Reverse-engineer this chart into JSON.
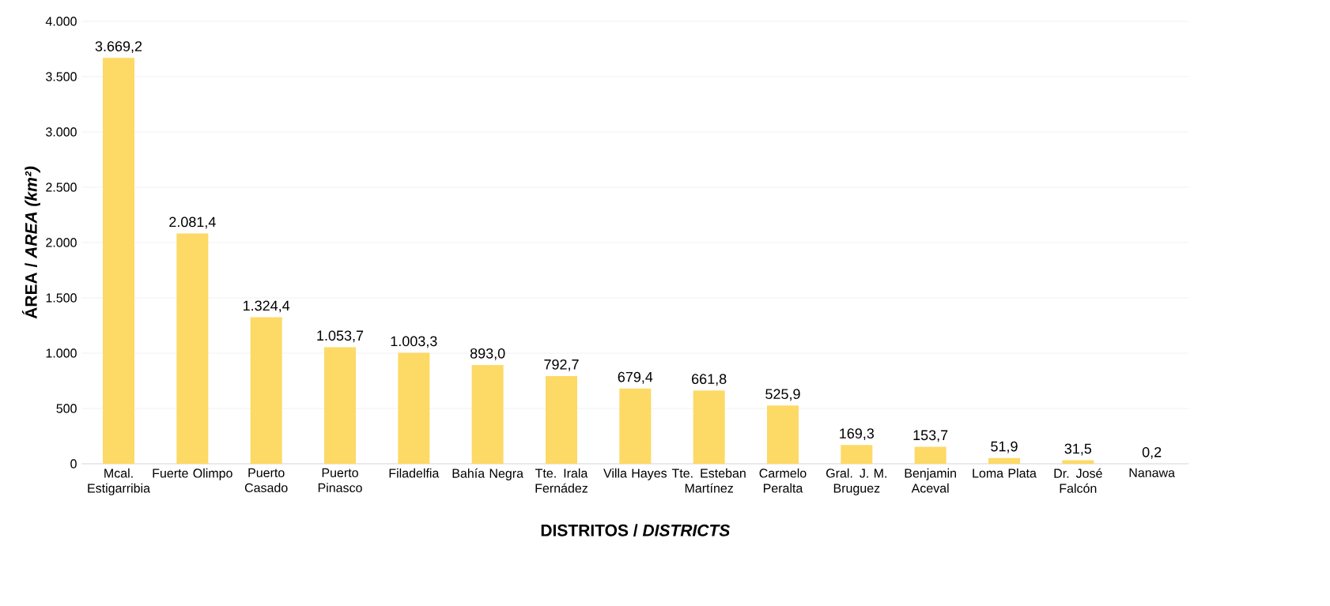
{
  "chart_data": {
    "type": "bar",
    "categories": [
      "Mcal. Estigarribia",
      "Fuerte Olimpo",
      "Puerto Casado",
      "Puerto Pinasco",
      "Filadelfia",
      "Bahía Negra",
      "Tte. Irala Fernádez",
      "Villa Hayes",
      "Tte. Esteban Martínez",
      "Carmelo Peralta",
      "Gral. J. M. Bruguez",
      "Benjamin Aceval",
      "Loma Plata",
      "Dr. José Falcón",
      "Nanawa"
    ],
    "values": [
      3669.2,
      2081.4,
      1324.4,
      1053.7,
      1003.3,
      893.0,
      792.7,
      679.4,
      661.8,
      525.9,
      169.3,
      153.7,
      51.9,
      31.5,
      0.2
    ],
    "value_labels": [
      "3.669,2",
      "2.081,4",
      "1.324,4",
      "1.053,7",
      "1.003,3",
      "893,0",
      "792,7",
      "679,4",
      "661,8",
      "525,9",
      "169,3",
      "153,7",
      "51,9",
      "31,5",
      "0,2"
    ],
    "color": "#fdd966",
    "ylim": [
      0,
      4000
    ],
    "yticks": [
      {
        "value": 0,
        "label": "0"
      },
      {
        "value": 500,
        "label": "500"
      },
      {
        "value": 1000,
        "label": "1.000"
      },
      {
        "value": 1500,
        "label": "1.500"
      },
      {
        "value": 2000,
        "label": "2.000"
      },
      {
        "value": 2500,
        "label": "2.500"
      },
      {
        "value": 3000,
        "label": "3.000"
      },
      {
        "value": 3500,
        "label": "3.500"
      },
      {
        "value": 4000,
        "label": "4.000"
      }
    ],
    "grid": "y",
    "xlabel": "DISTRITOS / *DISTRICTS*",
    "ylabel": "ÁREA / *AREA (km²)*"
  }
}
